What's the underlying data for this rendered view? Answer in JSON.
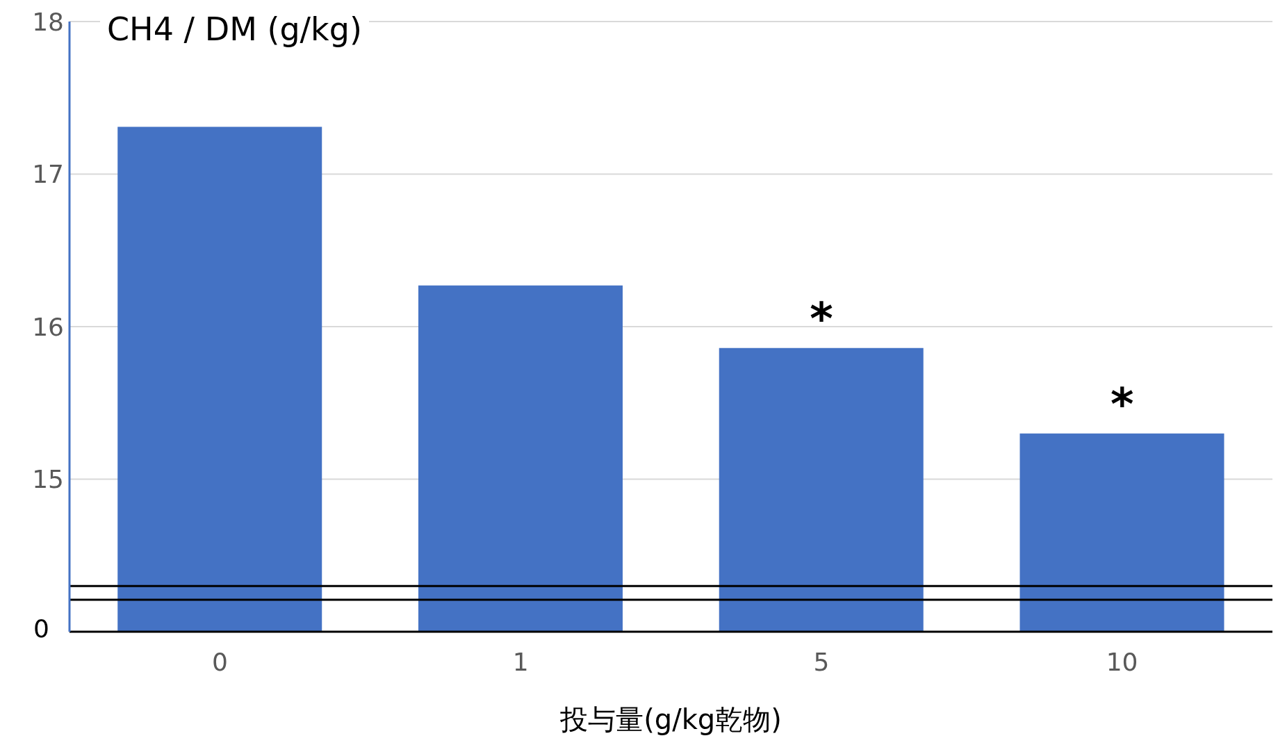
{
  "chart_data": {
    "type": "bar",
    "ylabel": "CH4 / DM (g/kg)",
    "xlabel": "投与量(g/kg乾物)",
    "categories": [
      "0",
      "1",
      "5",
      "10"
    ],
    "values": [
      17.31,
      16.27,
      15.86,
      15.3
    ],
    "color": "#4472c4",
    "ref_lines": [
      {
        "axis": "y",
        "value": 14.3,
        "color": "#000000"
      },
      {
        "axis": "y",
        "value": 14.21,
        "color": "#000000"
      }
    ],
    "ylim": [
      14,
      18
    ],
    "yticks": [
      15,
      16,
      17,
      18
    ],
    "grid": "y",
    "annotations": [
      "0",
      {
        "text": "*",
        "x": "5",
        "y": 15.86
      },
      {
        "text": "*",
        "x": "10",
        "y": 15.3
      }
    ]
  }
}
